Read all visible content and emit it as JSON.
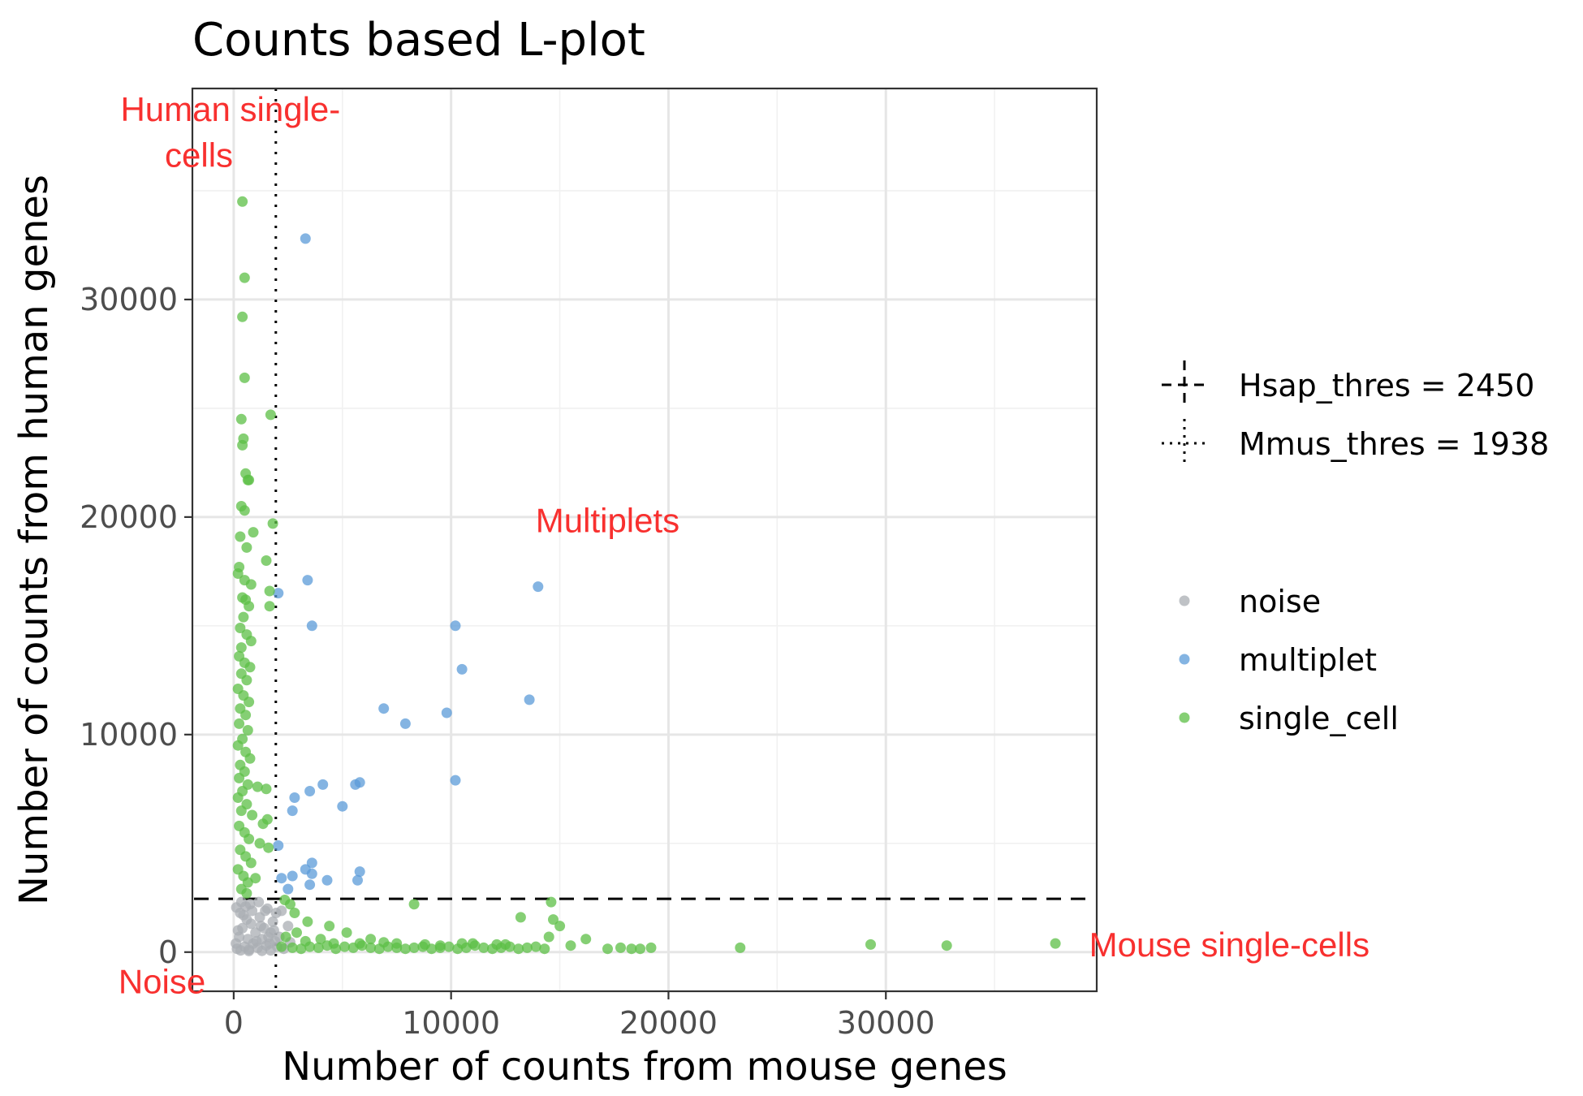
{
  "chart_data": {
    "type": "scatter",
    "title": "Counts based L-plot",
    "xlabel": "Number of counts from mouse genes",
    "ylabel": "Number of counts from human genes",
    "xlim": [
      -1900,
      39700
    ],
    "ylim": [
      -1800,
      39700
    ],
    "xticks": [
      0,
      10000,
      20000,
      30000
    ],
    "yticks": [
      0,
      10000,
      20000,
      30000
    ],
    "grid": true,
    "legend_position": "right",
    "thresholds": [
      {
        "name": "Hsap_thres = 2450",
        "axis": "y",
        "value": 2450,
        "style": "dashed"
      },
      {
        "name": "Mmus_thres = 1938",
        "axis": "x",
        "value": 1938,
        "style": "dotted"
      }
    ],
    "annotations": [
      {
        "text": "Human single-",
        "x": -150,
        "y": 38200
      },
      {
        "text": "cells",
        "x": -1600,
        "y": 36100
      },
      {
        "text": "Multiplets",
        "x": 17200,
        "y": 19300
      },
      {
        "text": "Mouse single-cells",
        "x": 45800,
        "y": -200
      },
      {
        "text": "Noise",
        "x": -3300,
        "y": -1900
      }
    ],
    "series": [
      {
        "name": "noise",
        "color": "#a9aeb3",
        "points": [
          [
            150,
            150
          ],
          [
            320,
            80
          ],
          [
            500,
            250
          ],
          [
            700,
            120
          ],
          [
            900,
            400
          ],
          [
            1100,
            200
          ],
          [
            1300,
            600
          ],
          [
            1500,
            300
          ],
          [
            1700,
            900
          ],
          [
            1900,
            500
          ],
          [
            250,
            700
          ],
          [
            400,
            1100
          ],
          [
            600,
            1500
          ],
          [
            300,
            1800
          ],
          [
            550,
            2100
          ],
          [
            800,
            1300
          ],
          [
            1000,
            900
          ],
          [
            1200,
            1600
          ],
          [
            1400,
            1100
          ],
          [
            1600,
            700
          ],
          [
            1800,
            1400
          ],
          [
            100,
            400
          ],
          [
            200,
            1000
          ],
          [
            450,
            1700
          ],
          [
            650,
            600
          ],
          [
            850,
            1900
          ],
          [
            1050,
            500
          ],
          [
            1250,
            1200
          ],
          [
            1450,
            1900
          ],
          [
            1650,
            400
          ],
          [
            1850,
            1000
          ],
          [
            2000,
            250
          ],
          [
            2300,
            150
          ],
          [
            2600,
            450
          ],
          [
            350,
            2300
          ],
          [
            750,
            2200
          ],
          [
            1150,
            2300
          ],
          [
            1550,
            2000
          ],
          [
            2200,
            1900
          ],
          [
            2500,
            1200
          ],
          [
            120,
            2050
          ],
          [
            1950,
            1800
          ],
          [
            700,
            50
          ],
          [
            1300,
            60
          ],
          [
            1700,
            80
          ],
          [
            2100,
            700
          ]
        ]
      },
      {
        "name": "multiplet",
        "color": "#5b9bd8",
        "points": [
          [
            3300,
            32800
          ],
          [
            2050,
            16500
          ],
          [
            3400,
            17100
          ],
          [
            3600,
            15000
          ],
          [
            14000,
            16800
          ],
          [
            10200,
            15000
          ],
          [
            10500,
            13000
          ],
          [
            13600,
            11600
          ],
          [
            6900,
            11200
          ],
          [
            9800,
            11000
          ],
          [
            7900,
            10500
          ],
          [
            10200,
            7900
          ],
          [
            4100,
            7700
          ],
          [
            3500,
            7400
          ],
          [
            2800,
            7100
          ],
          [
            5600,
            7700
          ],
          [
            5800,
            7800
          ],
          [
            2700,
            6500
          ],
          [
            5000,
            6700
          ],
          [
            2050,
            4900
          ],
          [
            3600,
            4100
          ],
          [
            3300,
            3800
          ],
          [
            3600,
            3600
          ],
          [
            2700,
            3500
          ],
          [
            4300,
            3300
          ],
          [
            5800,
            3700
          ],
          [
            5700,
            3300
          ],
          [
            2200,
            3400
          ],
          [
            3500,
            3100
          ],
          [
            2500,
            2900
          ]
        ]
      },
      {
        "name": "single_cell",
        "color": "#5cbf45",
        "points": [
          [
            400,
            34500
          ],
          [
            500,
            31000
          ],
          [
            400,
            29200
          ],
          [
            500,
            26400
          ],
          [
            1700,
            24700
          ],
          [
            350,
            24500
          ],
          [
            450,
            23600
          ],
          [
            400,
            23300
          ],
          [
            550,
            22000
          ],
          [
            650,
            21700
          ],
          [
            700,
            21700
          ],
          [
            350,
            20500
          ],
          [
            500,
            20300
          ],
          [
            1800,
            19700
          ],
          [
            300,
            19100
          ],
          [
            900,
            19300
          ],
          [
            600,
            18600
          ],
          [
            1500,
            18000
          ],
          [
            250,
            17700
          ],
          [
            200,
            17400
          ],
          [
            500,
            17100
          ],
          [
            800,
            16900
          ],
          [
            1650,
            16600
          ],
          [
            400,
            16300
          ],
          [
            550,
            16200
          ],
          [
            700,
            15900
          ],
          [
            1650,
            15900
          ],
          [
            450,
            15400
          ],
          [
            300,
            14900
          ],
          [
            600,
            14600
          ],
          [
            800,
            14300
          ],
          [
            350,
            14000
          ],
          [
            250,
            13600
          ],
          [
            500,
            13300
          ],
          [
            750,
            13100
          ],
          [
            350,
            12800
          ],
          [
            600,
            12500
          ],
          [
            200,
            12100
          ],
          [
            450,
            11800
          ],
          [
            700,
            11500
          ],
          [
            300,
            11200
          ],
          [
            550,
            10900
          ],
          [
            250,
            10500
          ],
          [
            650,
            10200
          ],
          [
            400,
            9800
          ],
          [
            200,
            9500
          ],
          [
            550,
            9200
          ],
          [
            750,
            8900
          ],
          [
            300,
            8600
          ],
          [
            500,
            8300
          ],
          [
            250,
            8000
          ],
          [
            650,
            7700
          ],
          [
            1100,
            7600
          ],
          [
            1500,
            7500
          ],
          [
            400,
            7400
          ],
          [
            200,
            7100
          ],
          [
            600,
            6800
          ],
          [
            350,
            6500
          ],
          [
            850,
            6300
          ],
          [
            1350,
            5900
          ],
          [
            1550,
            6100
          ],
          [
            250,
            5800
          ],
          [
            500,
            5500
          ],
          [
            700,
            5200
          ],
          [
            1200,
            5000
          ],
          [
            1600,
            4800
          ],
          [
            300,
            4700
          ],
          [
            550,
            4400
          ],
          [
            800,
            4100
          ],
          [
            200,
            3800
          ],
          [
            450,
            3500
          ],
          [
            650,
            3200
          ],
          [
            1000,
            3400
          ],
          [
            350,
            2900
          ],
          [
            600,
            2700
          ],
          [
            2350,
            2400
          ],
          [
            2800,
            1800
          ],
          [
            2600,
            2200
          ],
          [
            3400,
            1400
          ],
          [
            4400,
            1200
          ],
          [
            5200,
            900
          ],
          [
            6300,
            600
          ],
          [
            7500,
            400
          ],
          [
            8300,
            2200
          ],
          [
            9500,
            300
          ],
          [
            11000,
            400
          ],
          [
            12500,
            350
          ],
          [
            13200,
            1600
          ],
          [
            14600,
            2300
          ],
          [
            14700,
            1500
          ],
          [
            15000,
            1200
          ],
          [
            14500,
            700
          ],
          [
            16200,
            600
          ],
          [
            15500,
            300
          ],
          [
            17200,
            150
          ],
          [
            17800,
            200
          ],
          [
            18300,
            150
          ],
          [
            18700,
            150
          ],
          [
            19200,
            200
          ],
          [
            23300,
            200
          ],
          [
            29300,
            350
          ],
          [
            32800,
            300
          ],
          [
            37800,
            400
          ],
          [
            2200,
            250
          ],
          [
            2700,
            200
          ],
          [
            3100,
            150
          ],
          [
            3500,
            250
          ],
          [
            3900,
            200
          ],
          [
            4300,
            300
          ],
          [
            4700,
            150
          ],
          [
            5100,
            250
          ],
          [
            5500,
            200
          ],
          [
            5900,
            300
          ],
          [
            6300,
            200
          ],
          [
            6700,
            150
          ],
          [
            7100,
            250
          ],
          [
            7500,
            200
          ],
          [
            7900,
            150
          ],
          [
            8300,
            200
          ],
          [
            8700,
            250
          ],
          [
            9100,
            150
          ],
          [
            9500,
            200
          ],
          [
            9900,
            250
          ],
          [
            10300,
            150
          ],
          [
            10700,
            200
          ],
          [
            11100,
            300
          ],
          [
            11500,
            200
          ],
          [
            11900,
            150
          ],
          [
            12300,
            200
          ],
          [
            12700,
            250
          ],
          [
            13100,
            150
          ],
          [
            13500,
            200
          ],
          [
            13900,
            250
          ],
          [
            14300,
            150
          ],
          [
            2400,
            700
          ],
          [
            2900,
            900
          ],
          [
            3300,
            500
          ],
          [
            4000,
            600
          ],
          [
            4600,
            400
          ],
          [
            5800,
            400
          ],
          [
            6900,
            450
          ],
          [
            8800,
            350
          ],
          [
            10500,
            400
          ],
          [
            12100,
            350
          ]
        ]
      }
    ]
  }
}
